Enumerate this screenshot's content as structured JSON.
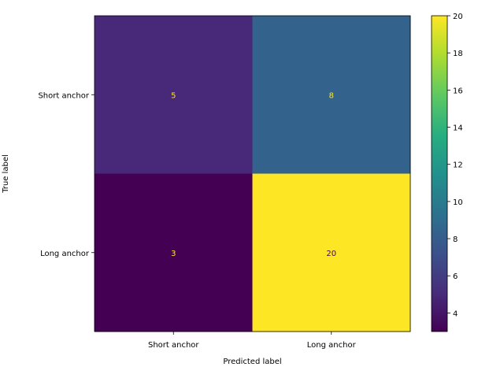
{
  "chart_data": {
    "type": "heatmap",
    "title": "",
    "xlabel": "Predicted label",
    "ylabel": "True label",
    "x_categories": [
      "Short anchor",
      "Long anchor"
    ],
    "y_categories": [
      "Short anchor",
      "Long anchor"
    ],
    "matrix": [
      [
        5,
        8
      ],
      [
        3,
        20
      ]
    ],
    "colormap": "viridis",
    "colorbar": {
      "vmin": 3,
      "vmax": 20,
      "ticks": [
        4,
        6,
        8,
        10,
        12,
        14,
        16,
        18,
        20
      ]
    },
    "cell_colors": [
      [
        "#482878",
        "#33638d"
      ],
      [
        "#440154",
        "#fde725"
      ]
    ],
    "text_colors": {
      "on_dark": "#fde725",
      "on_light": "#440154"
    }
  }
}
